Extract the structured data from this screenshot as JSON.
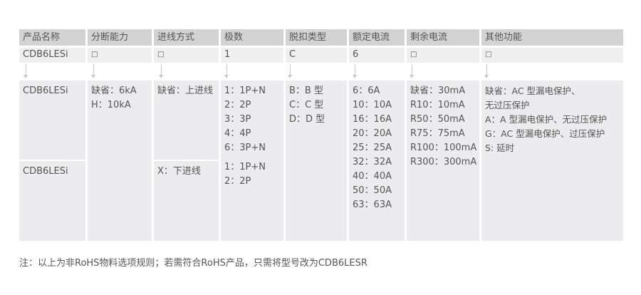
{
  "headers": [
    "产品名称",
    "分断能力",
    "进线方式",
    "极数",
    "脱扣类型",
    "额定电流",
    "剩余电流",
    "其他功能"
  ],
  "code_row": [
    "CDB6LESi",
    "□",
    "□",
    "1",
    "C",
    "6",
    "□",
    "□"
  ],
  "product_names": [
    "CDB6LESi",
    "CDB6LESi"
  ],
  "breaking_capacity": [
    "缺省：6kA",
    "H：10kA"
  ],
  "wiring": {
    "top": [
      "缺省：上进线"
    ],
    "bottom": [
      "X：下进线"
    ]
  },
  "poles": {
    "top": [
      "1：1P+N",
      "2：2P",
      "3：3P",
      "4：4P",
      "6：3P+N"
    ],
    "bottom": [
      "1：1P+N",
      "2：2P"
    ]
  },
  "trip_type": [
    "B：B 型",
    "C：C 型",
    "D：D 型"
  ],
  "rated_current": [
    "6：6A",
    "10：10A",
    "16：16A",
    "20：20A",
    "25：25A",
    "32：32A",
    "40：40A",
    "50：50A",
    "63：63A"
  ],
  "residual_current": [
    "缺省：30mA",
    "R10：10mA",
    "R50：50mA",
    "R75：75mA",
    "R100：100mA",
    "R300：300mA"
  ],
  "other_functions": [
    "缺省：AC 型漏电保护、",
    "无过压保护",
    "A：A 型漏电保护、无过压保护",
    "G：AC 型漏电保护、过压保护",
    "S: 延时"
  ],
  "note": "注：以上为非RoHS物料选项规则；若需符合RoHS产品，只需将型号改为CDB6LESR"
}
